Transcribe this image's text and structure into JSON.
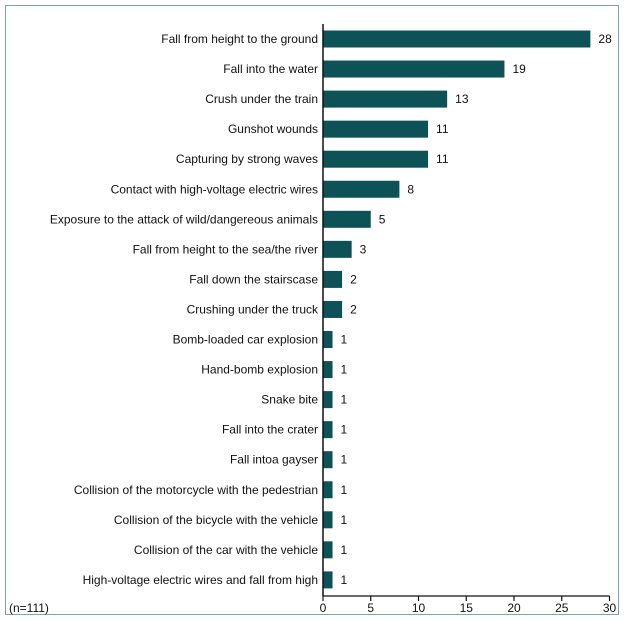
{
  "chart_data": {
    "type": "bar",
    "orientation": "horizontal",
    "categories": [
      "Fall from height to the ground",
      "Fall into the water",
      "Crush under the train",
      "Gunshot wounds",
      "Capturing by strong waves",
      "Contact with high-voltage electric wires",
      "Exposure to the attack of wild/dangereous animals",
      "Fall from height to the sea/the river",
      "Fall down the stairscase",
      "Crushing under the truck",
      "Bomb-loaded car explosion",
      "Hand-bomb explosion",
      "Snake bite",
      "Fall into the crater",
      "Fall intoa gayser",
      "Collision of the motorcycle with the pedestrian",
      "Collision of the bicycle with the vehicle",
      "Collision of the car with the vehicle",
      "High-voltage electric wires and fall from high"
    ],
    "values": [
      28,
      19,
      13,
      11,
      11,
      8,
      5,
      3,
      2,
      2,
      1,
      1,
      1,
      1,
      1,
      1,
      1,
      1,
      1
    ],
    "xlim": [
      0,
      30
    ],
    "xticks": [
      "0",
      "5",
      "10",
      "15",
      "20",
      "25",
      "30"
    ],
    "note": "(n=111)",
    "grid": false,
    "bar_color": "#0d5257"
  }
}
